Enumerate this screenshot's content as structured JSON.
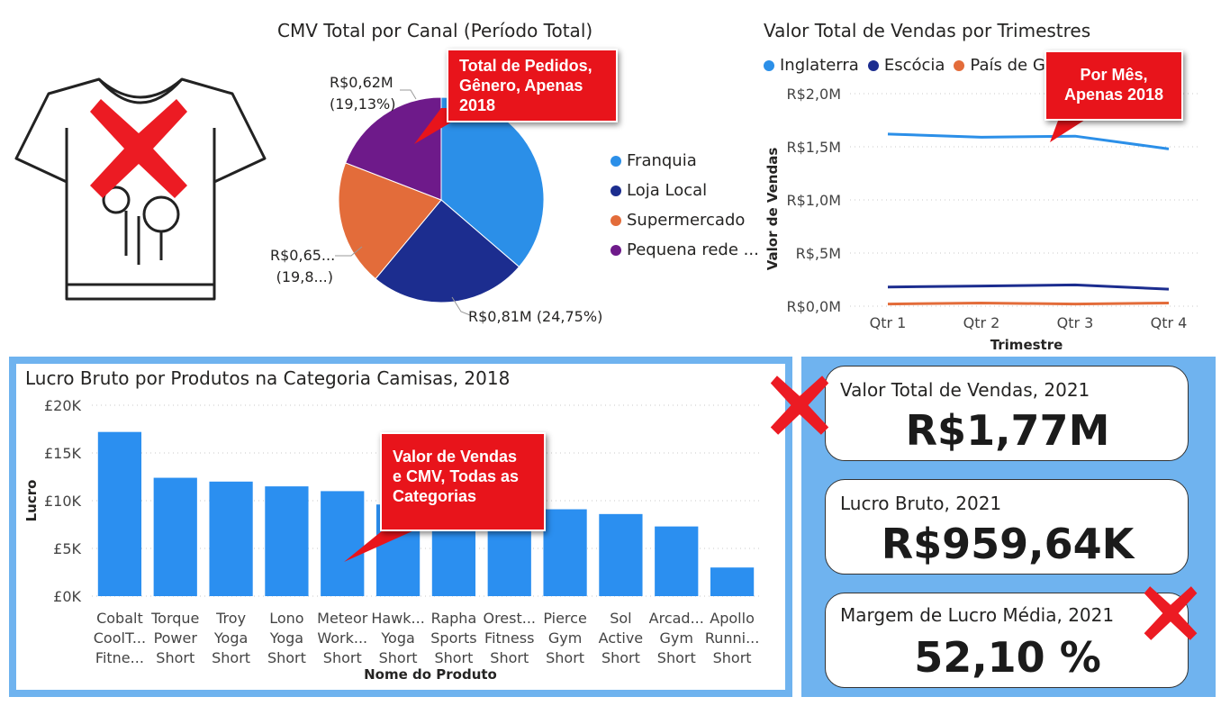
{
  "pie_chart": {
    "title": "CMV Total por Canal (Período Total)",
    "legend": [
      "Franquia",
      "Loja Local",
      "Supermercado",
      "Pequena rede ..."
    ],
    "labels": {
      "purple_value": "R$0,62M",
      "purple_pct": "(19,13%)",
      "orange_value": "R$0,65...",
      "orange_pct": "(19,8...)",
      "navy": "R$0,81M (24,75%)"
    },
    "callout": [
      "Total de Pedidos,",
      "Gênero, Apenas",
      "2018"
    ]
  },
  "line_chart": {
    "title": "Valor Total de Vendas por Trimestres",
    "callout": [
      "Por Mês,",
      "Apenas 2018"
    ]
  },
  "bar_chart": {
    "title": "Lucro Bruto por Produtos na Categoria Camisas, 2018",
    "callout": [
      "Valor de Vendas",
      "e CMV, Todas as",
      "Categorias"
    ],
    "category_labels": [
      [
        "Cobalt",
        "CoolT...",
        "Fitne..."
      ],
      [
        "Torque",
        "Power",
        "Short"
      ],
      [
        "Troy",
        "Yoga",
        "Short"
      ],
      [
        "Lono",
        "Yoga",
        "Short"
      ],
      [
        "Meteor",
        "Work...",
        "Short"
      ],
      [
        "Hawk...",
        "Yoga",
        "Short"
      ],
      [
        "Rapha",
        "Sports",
        "Short"
      ],
      [
        "Orest...",
        "Fitness",
        "Short"
      ],
      [
        "Pierce",
        "Gym",
        "Short"
      ],
      [
        "Sol",
        "Active",
        "Short"
      ],
      [
        "Arcad...",
        "Gym",
        "Short"
      ],
      [
        "Apollo",
        "Runni...",
        "Short"
      ]
    ]
  },
  "kpis": [
    {
      "label": "Valor Total de Vendas, 2021",
      "value": "R$1,77M"
    },
    {
      "label": "Lucro Bruto, 2021",
      "value": "R$959,64K"
    },
    {
      "label": "Margem de Lucro Média, 2021",
      "value": "52,10 %"
    }
  ],
  "icons": {
    "shirt": "tshirt-icon",
    "remove": "red-x-icon"
  },
  "colors": {
    "blue": "#2b8fe8",
    "navy": "#1c2d8f",
    "orange": "#e36c3a",
    "purple": "#6e1a8a",
    "bar": "#2b8ff0",
    "callout_red": "#e8141b",
    "panel_blue": "#6fb3ef"
  },
  "chart_data": [
    {
      "type": "pie",
      "title": "CMV Total por Canal (Período Total)",
      "categories": [
        "Franquia",
        "Loja Local",
        "Supermercado",
        "Pequena rede ..."
      ],
      "values_pct": [
        36.3,
        24.75,
        19.82,
        19.13
      ],
      "legend_position": "right"
    },
    {
      "type": "line",
      "title": "Valor Total de Vendas por Trimestres",
      "xlabel": "Trimestre",
      "ylabel": "Valor de Vendas",
      "categories": [
        "Qtr 1",
        "Qtr 2",
        "Qtr 3",
        "Qtr 4"
      ],
      "y_ticks": [
        "R$0,0M",
        "R$,5M",
        "R$1,0M",
        "R$1,5M",
        "R$2,0M"
      ],
      "ylim": [
        0,
        2.0
      ],
      "grid": true,
      "legend_position": "top-left",
      "series": [
        {
          "name": "Inglaterra",
          "values": [
            1.62,
            1.59,
            1.6,
            1.48
          ]
        },
        {
          "name": "Escócia",
          "values": [
            0.18,
            0.19,
            0.2,
            0.16
          ]
        },
        {
          "name": "País de Gales",
          "values": [
            0.02,
            0.03,
            0.02,
            0.03
          ]
        }
      ]
    },
    {
      "type": "bar",
      "title": "Lucro Bruto por Produtos na Categoria Camisas, 2018",
      "xlabel": "Nome do Produto",
      "ylabel": "Lucro",
      "y_ticks": [
        "£0K",
        "£5K",
        "£10K",
        "£15K",
        "£20K"
      ],
      "ylim": [
        0,
        20000
      ],
      "grid": true,
      "values": [
        17200,
        12400,
        12000,
        11500,
        11000,
        9600,
        9500,
        9200,
        9100,
        8600,
        7300,
        3000
      ]
    }
  ]
}
